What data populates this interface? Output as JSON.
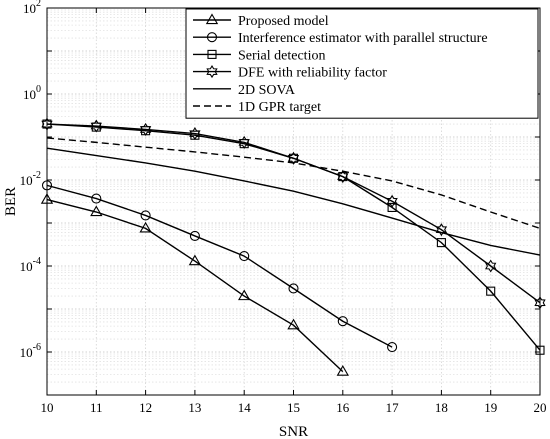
{
  "chart_data": {
    "type": "line",
    "xlabel": "SNR",
    "ylabel": "BER",
    "xlim": [
      10,
      20
    ],
    "ylim": [
      1e-07,
      100
    ],
    "yscale": "log",
    "grid": true,
    "legend_position": "top-right",
    "x_ticks": [
      "10",
      "11",
      "12",
      "13",
      "14",
      "15",
      "16",
      "17",
      "18",
      "19",
      "20"
    ],
    "y_ticks": [
      {
        "base": "10",
        "exp": "2",
        "value": 100
      },
      {
        "base": "10",
        "exp": "0",
        "value": 1
      },
      {
        "base": "10",
        "exp": "-2",
        "value": 0.01
      },
      {
        "base": "10",
        "exp": "-4",
        "value": 0.0001
      },
      {
        "base": "10",
        "exp": "-6",
        "value": 1e-06
      }
    ],
    "series": [
      {
        "name": "Proposed model",
        "marker": "triangle",
        "line": "solid",
        "x": [
          10,
          11,
          12,
          13,
          14,
          15,
          16
        ],
        "y": [
          0.0035,
          0.0018,
          0.00075,
          0.00013,
          2e-05,
          4.2e-06,
          3.5e-07
        ]
      },
      {
        "name": "Interference estimator with parallel structure",
        "marker": "circle",
        "line": "solid",
        "x": [
          10,
          11,
          12,
          13,
          14,
          15,
          16,
          17
        ],
        "y": [
          0.0075,
          0.0037,
          0.0015,
          0.0005,
          0.00017,
          3e-05,
          5.2e-06,
          1.3e-06
        ]
      },
      {
        "name": "Serial detection",
        "marker": "square",
        "line": "solid",
        "x": [
          10,
          11,
          12,
          13,
          14,
          15,
          16,
          17,
          18,
          19,
          20
        ],
        "y": [
          0.2,
          0.17,
          0.14,
          0.11,
          0.07,
          0.032,
          0.012,
          0.0023,
          0.00035,
          2.6e-05,
          1.1e-06
        ]
      },
      {
        "name": "DFE with reliability factor",
        "marker": "hexagram",
        "line": "solid",
        "x": [
          10,
          11,
          12,
          13,
          14,
          15,
          16,
          17,
          18,
          19,
          20
        ],
        "y": [
          0.2,
          0.18,
          0.15,
          0.12,
          0.075,
          0.032,
          0.012,
          0.0032,
          0.0007,
          0.0001,
          1.4e-05
        ]
      },
      {
        "name": "2D SOVA",
        "marker": "none",
        "line": "solid",
        "x": [
          10,
          11,
          12,
          13,
          14,
          15,
          16,
          17,
          18,
          19,
          20
        ],
        "y": [
          0.055,
          0.037,
          0.025,
          0.016,
          0.0095,
          0.0055,
          0.0028,
          0.0013,
          0.0006,
          0.0003,
          0.00018
        ]
      },
      {
        "name": "1D GPR target",
        "marker": "none",
        "line": "dashed",
        "x": [
          10,
          11,
          12,
          13,
          14,
          15,
          16,
          17,
          18,
          19,
          20
        ],
        "y": [
          0.095,
          0.075,
          0.058,
          0.045,
          0.034,
          0.025,
          0.016,
          0.0095,
          0.0045,
          0.0018,
          0.00075
        ]
      }
    ]
  }
}
